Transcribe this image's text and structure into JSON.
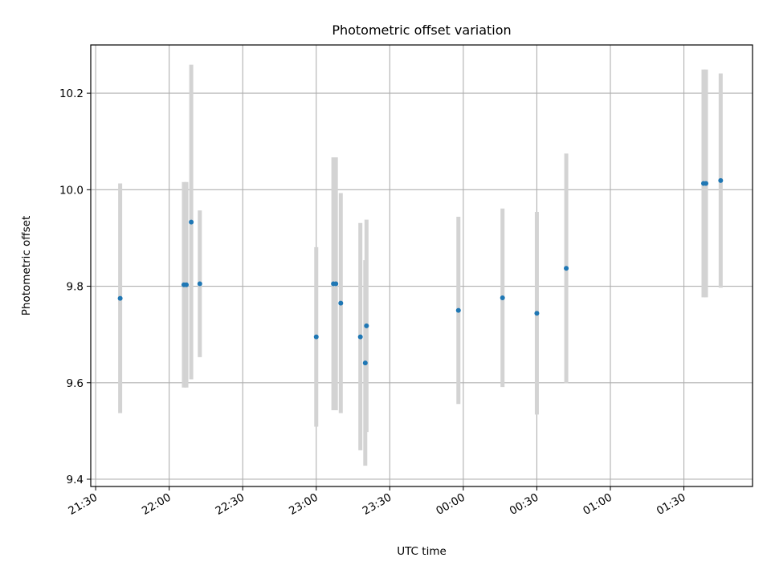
{
  "chart_data": {
    "type": "scatter",
    "title": "Photometric offset variation",
    "xlabel": "UTC time",
    "ylabel": "Photometric offset",
    "x_tick_labels": [
      "21:30",
      "22:00",
      "22:30",
      "23:00",
      "23:30",
      "00:00",
      "00:30",
      "01:00",
      "01:30"
    ],
    "y_tick_labels": [
      "9.4",
      "9.6",
      "9.8",
      "10.0",
      "10.2"
    ],
    "x_ticks_minutes": [
      0,
      30,
      60,
      90,
      120,
      150,
      180,
      210,
      240
    ],
    "y_ticks": [
      9.4,
      9.6,
      9.8,
      10.0,
      10.2
    ],
    "xlim_minutes": [
      -2,
      268
    ],
    "ylim": [
      9.385,
      10.3
    ],
    "grid": true,
    "colors": {
      "point": "#1f77b4",
      "errorbar": "#d3d3d3",
      "grid": "#b0b0b0"
    },
    "points": [
      {
        "t": 10,
        "y": 9.775,
        "lo": 9.537,
        "hi": 10.013
      },
      {
        "t": 36,
        "y": 9.803,
        "lo": 9.59,
        "hi": 10.016
      },
      {
        "t": 37,
        "y": 9.803,
        "lo": 9.59,
        "hi": 10.016
      },
      {
        "t": 39,
        "y": 9.933,
        "lo": 9.607,
        "hi": 10.259
      },
      {
        "t": 42.5,
        "y": 9.805,
        "lo": 9.653,
        "hi": 9.957
      },
      {
        "t": 90,
        "y": 9.695,
        "lo": 9.509,
        "hi": 9.881
      },
      {
        "t": 97,
        "y": 9.805,
        "lo": 9.543,
        "hi": 10.067
      },
      {
        "t": 98,
        "y": 9.805,
        "lo": 9.543,
        "hi": 10.067
      },
      {
        "t": 100,
        "y": 9.765,
        "lo": 9.537,
        "hi": 9.993
      },
      {
        "t": 108,
        "y": 9.695,
        "lo": 9.46,
        "hi": 9.931
      },
      {
        "t": 110,
        "y": 9.641,
        "lo": 9.428,
        "hi": 9.854
      },
      {
        "t": 110.5,
        "y": 9.718,
        "lo": 9.498,
        "hi": 9.938
      },
      {
        "t": 148,
        "y": 9.75,
        "lo": 9.556,
        "hi": 9.944
      },
      {
        "t": 166,
        "y": 9.776,
        "lo": 9.591,
        "hi": 9.961
      },
      {
        "t": 180,
        "y": 9.744,
        "lo": 9.534,
        "hi": 9.954
      },
      {
        "t": 192,
        "y": 9.837,
        "lo": 9.599,
        "hi": 10.075
      },
      {
        "t": 248,
        "y": 10.013,
        "lo": 9.777,
        "hi": 10.249
      },
      {
        "t": 249,
        "y": 10.013,
        "lo": 9.777,
        "hi": 10.249
      },
      {
        "t": 255,
        "y": 10.019,
        "lo": 9.797,
        "hi": 10.241
      }
    ]
  }
}
